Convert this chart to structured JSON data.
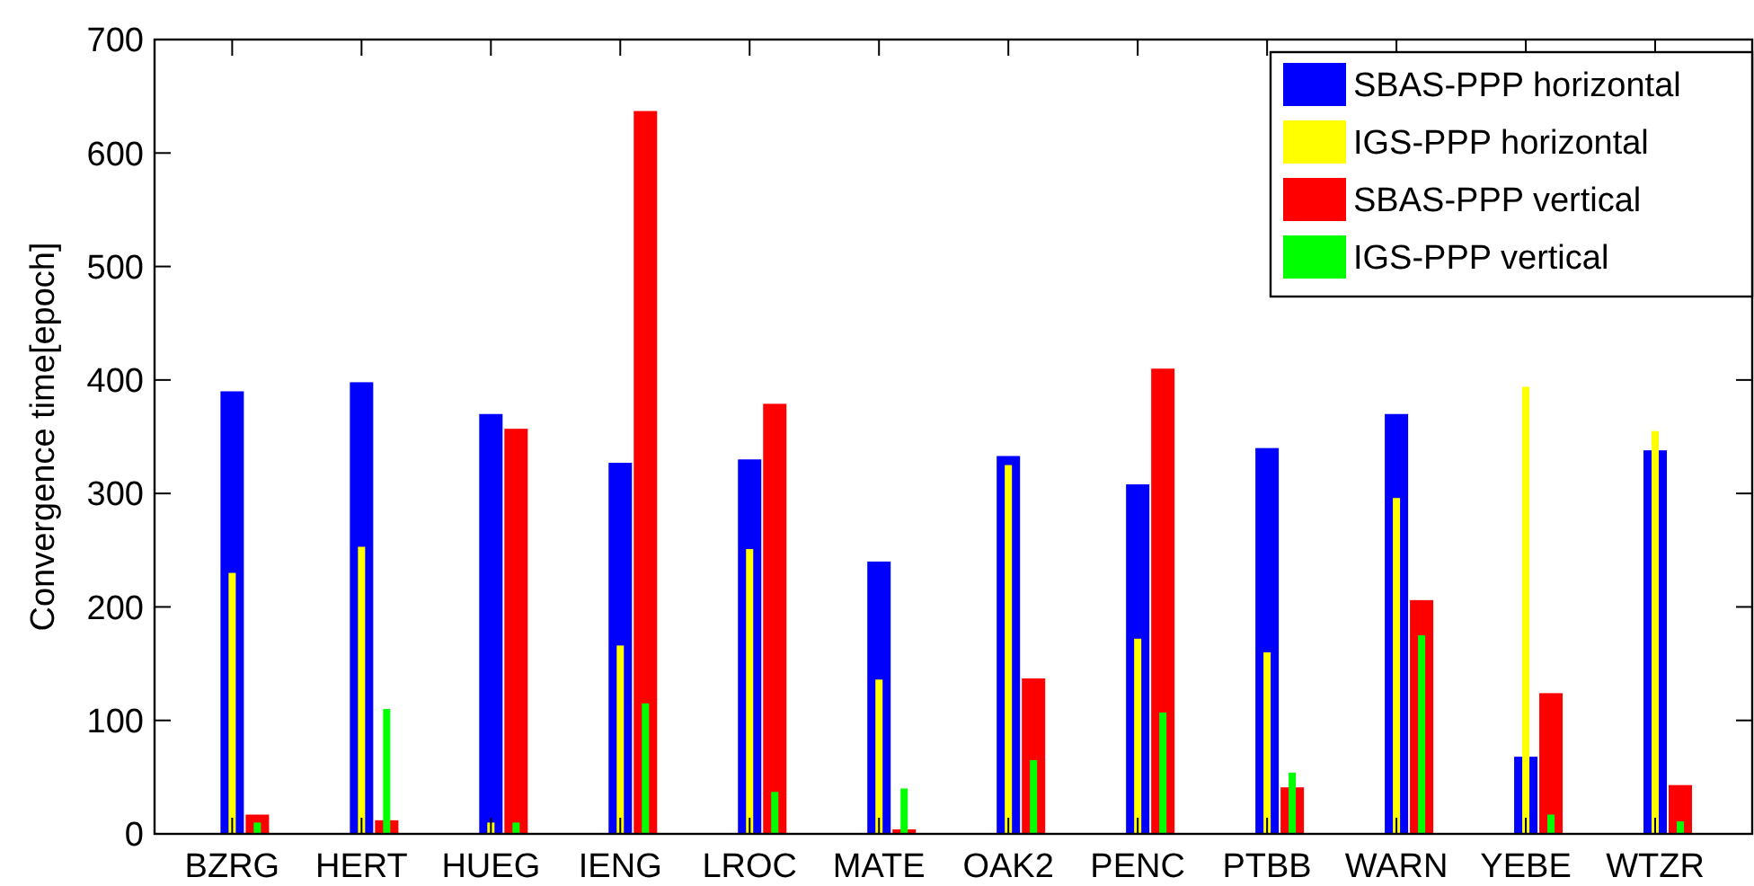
{
  "chart_data": {
    "type": "bar",
    "ylabel": "Convergence time[epoch]",
    "categories": [
      "BZRG",
      "HERT",
      "HUEG",
      "IENG",
      "LROC",
      "MATE",
      "OAK2",
      "PENC",
      "PTBB",
      "WARN",
      "YEBE",
      "WTZR"
    ],
    "series": [
      {
        "name": "SBAS-PPP horizontal",
        "color": "#0000ff",
        "values": [
          390,
          398,
          370,
          327,
          330,
          240,
          333,
          308,
          340,
          370,
          68,
          338
        ]
      },
      {
        "name": "IGS-PPP horizontal",
        "color": "#ffff00",
        "values": [
          230,
          253,
          10,
          166,
          251,
          136,
          325,
          172,
          160,
          296,
          394,
          355
        ]
      },
      {
        "name": "SBAS-PPP vertical",
        "color": "#ff0000",
        "values": [
          17,
          12,
          357,
          637,
          379,
          4,
          137,
          410,
          41,
          206,
          124,
          43
        ]
      },
      {
        "name": "IGS-PPP vertical",
        "color": "#00ff00",
        "values": [
          10,
          110,
          10,
          115,
          37,
          40,
          65,
          107,
          54,
          175,
          17,
          11
        ]
      }
    ],
    "ylim": [
      0,
      700
    ],
    "yticks": [
      0,
      100,
      200,
      300,
      400,
      500,
      600,
      700
    ],
    "grid": false,
    "legend": "top right"
  }
}
